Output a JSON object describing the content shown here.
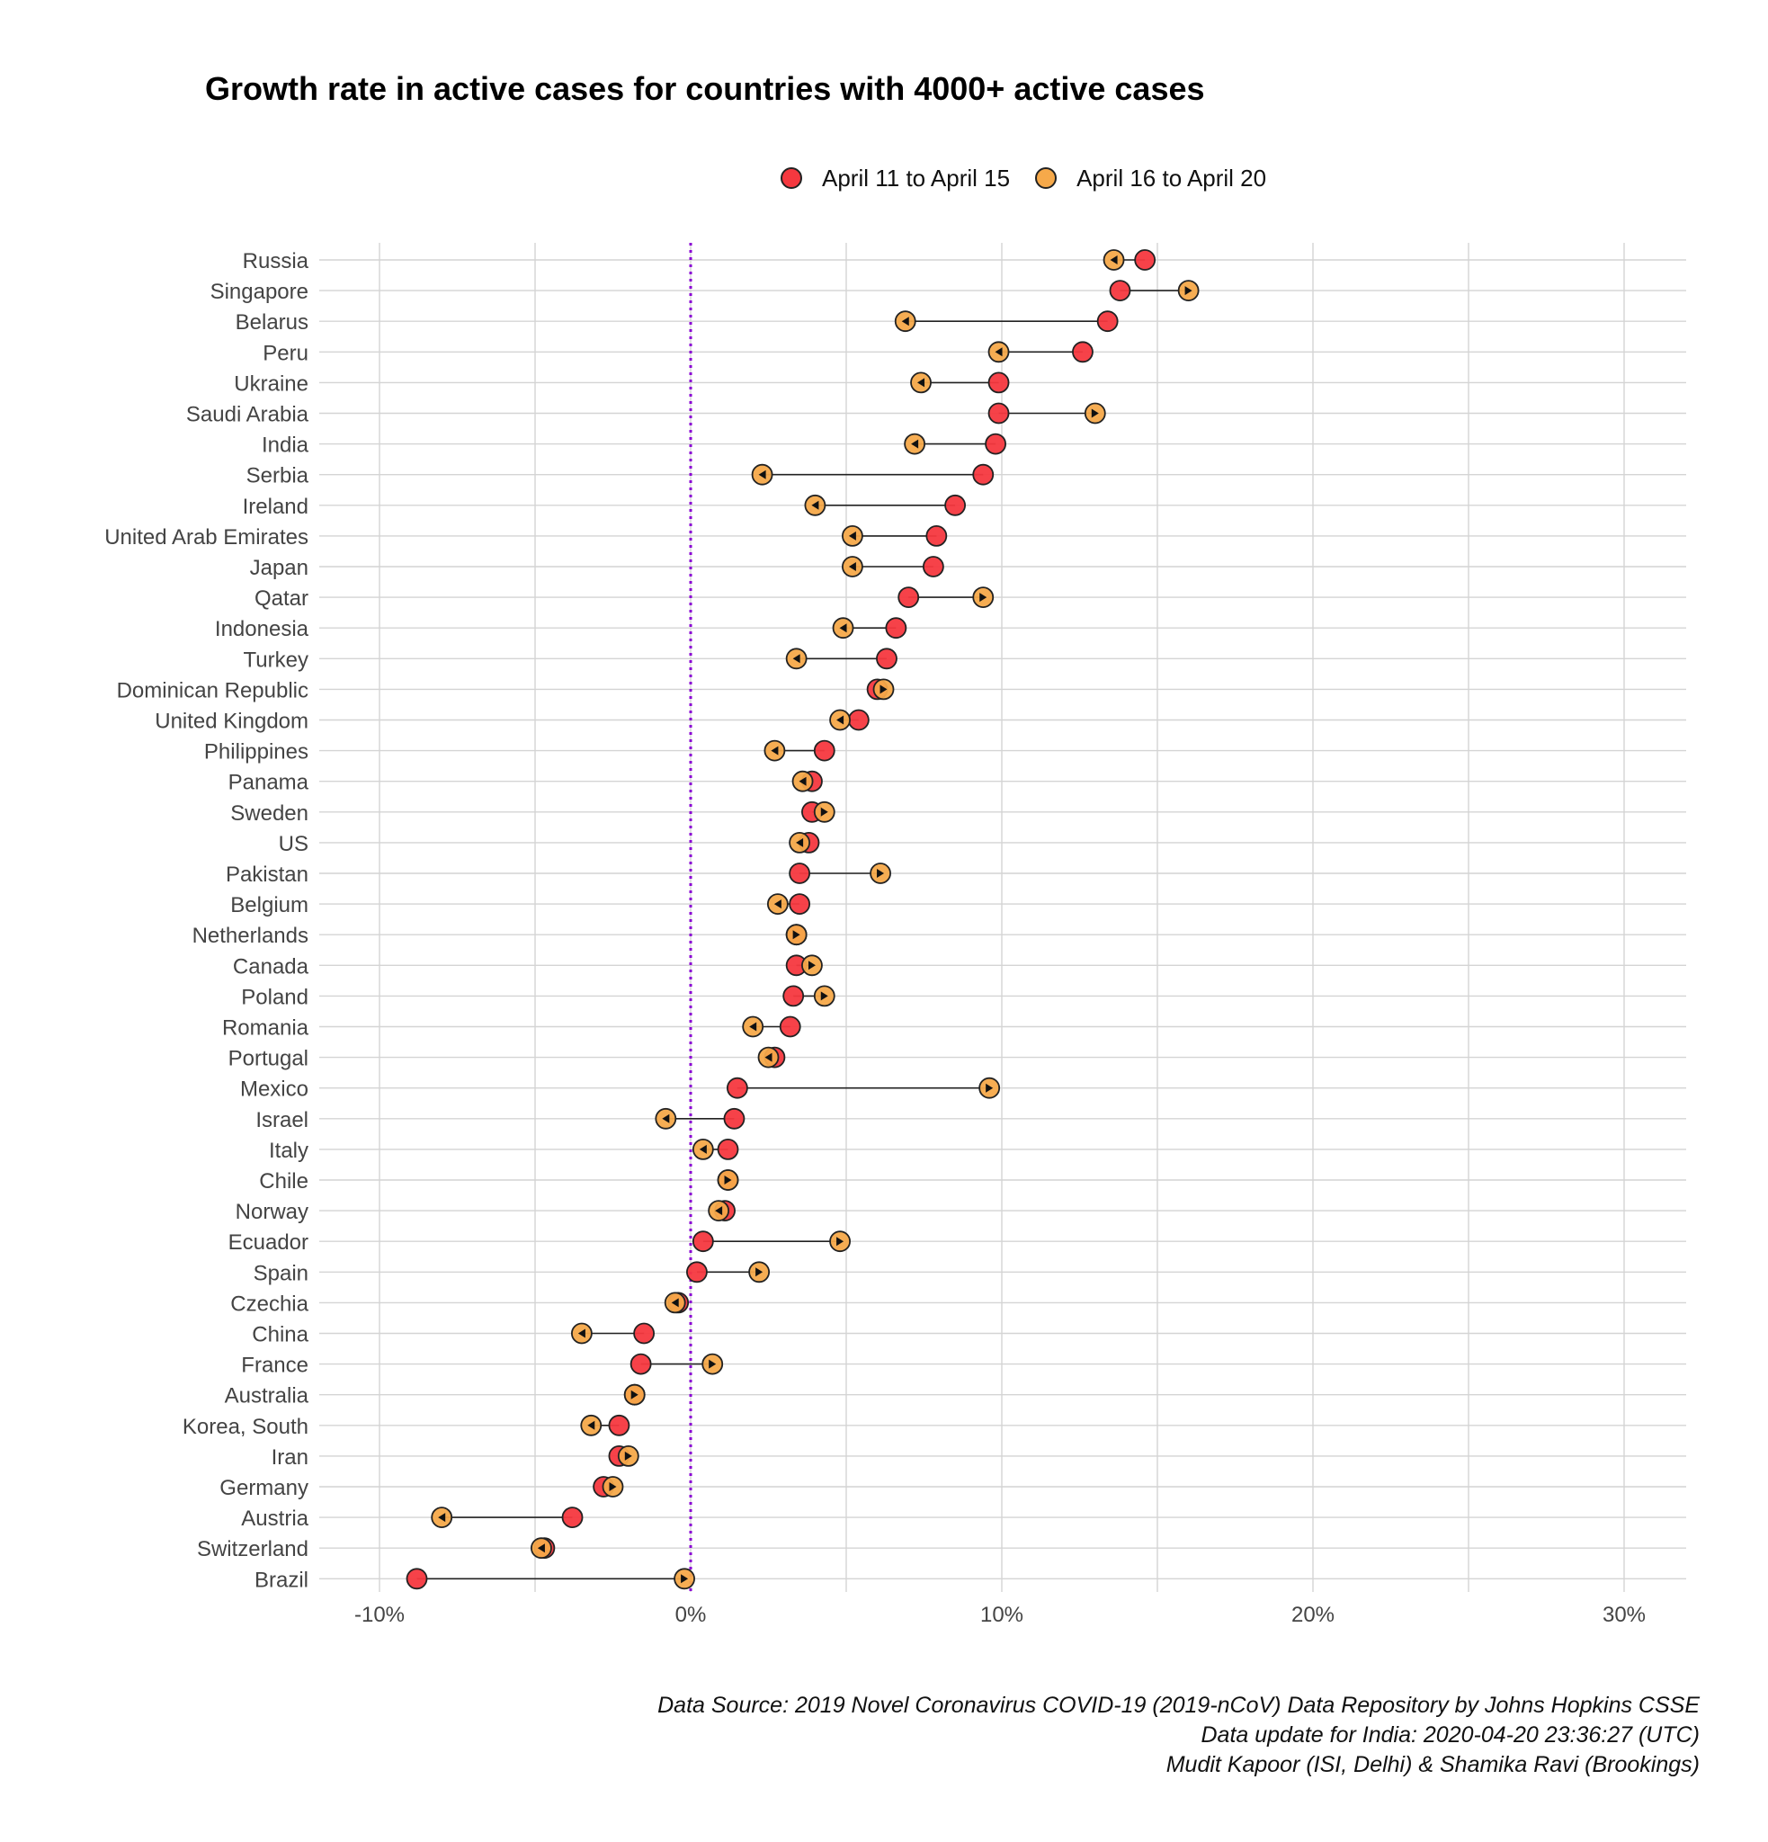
{
  "chart_data": {
    "type": "dumbbell",
    "title": "Growth rate in active cases for countries with 4000+ active cases",
    "xlabel": "",
    "ylabel": "",
    "xlim": [
      -12.5,
      32
    ],
    "x_ticks": [
      -10,
      0,
      10,
      20,
      30
    ],
    "x_tick_labels": [
      "-10%",
      "0%",
      "10%",
      "20%",
      "30%"
    ],
    "reference_line": 0,
    "legend_position": "top",
    "series": [
      {
        "name": "April 11 to April 15",
        "color": "#f5383f"
      },
      {
        "name": "April 16 to April 20",
        "color": "#f6a94a"
      }
    ],
    "categories": [
      "Russia",
      "Singapore",
      "Belarus",
      "Peru",
      "Ukraine",
      "Saudi Arabia",
      "India",
      "Serbia",
      "Ireland",
      "United Arab Emirates",
      "Japan",
      "Qatar",
      "Indonesia",
      "Turkey",
      "Dominican Republic",
      "United Kingdom",
      "Philippines",
      "Panama",
      "Sweden",
      "US",
      "Pakistan",
      "Belgium",
      "Netherlands",
      "Canada",
      "Poland",
      "Romania",
      "Portugal",
      "Mexico",
      "Israel",
      "Italy",
      "Chile",
      "Norway",
      "Ecuador",
      "Spain",
      "Czechia",
      "China",
      "France",
      "Australia",
      "Korea, South",
      "Iran",
      "Germany",
      "Austria",
      "Switzerland",
      "Brazil"
    ],
    "values_period1": [
      14.6,
      13.8,
      13.4,
      12.6,
      9.9,
      9.9,
      9.8,
      9.4,
      8.5,
      7.9,
      7.8,
      7.0,
      6.6,
      6.3,
      6.0,
      5.4,
      4.3,
      3.9,
      3.9,
      3.8,
      3.5,
      3.5,
      3.4,
      3.4,
      3.3,
      3.2,
      2.7,
      1.5,
      1.4,
      1.2,
      1.2,
      1.1,
      0.4,
      0.2,
      -0.4,
      -1.5,
      -1.6,
      -1.8,
      -2.3,
      -2.3,
      -2.8,
      -3.8,
      -4.7,
      -8.8
    ],
    "values_period2": [
      13.6,
      16.0,
      6.9,
      9.9,
      7.4,
      13.0,
      7.2,
      2.3,
      4.0,
      5.2,
      5.2,
      9.4,
      4.9,
      3.4,
      6.2,
      4.8,
      2.7,
      3.6,
      4.3,
      3.5,
      6.1,
      2.8,
      3.4,
      3.9,
      4.3,
      2.0,
      2.5,
      9.6,
      -0.8,
      0.4,
      1.2,
      0.9,
      4.8,
      2.2,
      -0.5,
      -3.5,
      0.7,
      -1.8,
      -3.2,
      -2.0,
      -2.5,
      -8.0,
      -4.8,
      -0.2
    ]
  },
  "caption": {
    "line1": "Data Source: 2019 Novel Coronavirus COVID-19 (2019-nCoV) Data Repository by Johns Hopkins CSSE",
    "line2": "Data update for India: 2020-04-20 23:36:27 (UTC)",
    "line3": "Mudit Kapoor (ISI, Delhi) & Shamika Ravi (Brookings)"
  }
}
